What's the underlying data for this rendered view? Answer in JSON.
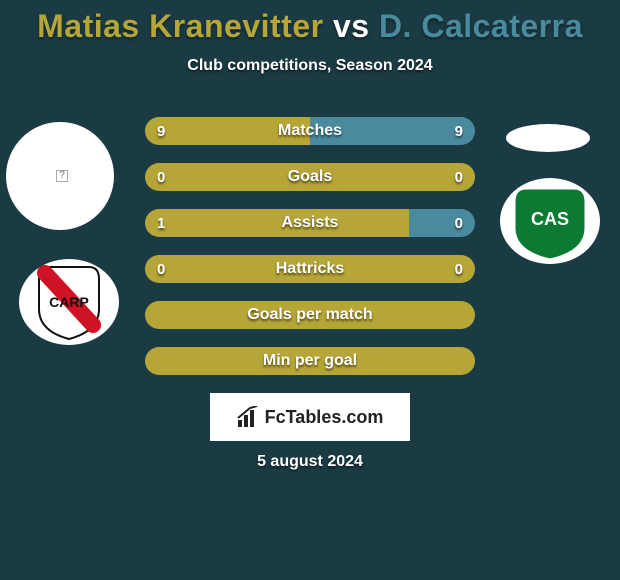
{
  "background_color": "#1b3b44",
  "title": {
    "player1": "Matias Kranevitter",
    "player1_color": "#b6a537",
    "vs": " vs ",
    "vs_color": "#ffffff",
    "player2": "D. Calcaterra",
    "player2_color": "#4a8a9e",
    "fontsize": 32,
    "fontweight": 900
  },
  "subtitle": {
    "text": "Club competitions, Season 2024",
    "fontsize": 16,
    "color": "#ffffff"
  },
  "bars": {
    "height": 28,
    "border_radius": 14,
    "gap": 18,
    "left_color": "#b6a537",
    "right_color": "#4a8a9e",
    "empty_color": "#b6a537",
    "label_color": "#ffffff",
    "value_color": "#ffffff",
    "label_fontsize": 16,
    "value_fontsize": 15
  },
  "stats": [
    {
      "label": "Matches",
      "left_val": "9",
      "right_val": "9",
      "left_pct": 50,
      "right_pct": 50
    },
    {
      "label": "Goals",
      "left_val": "0",
      "right_val": "0",
      "left_pct": 100,
      "right_pct": 0,
      "empty": true
    },
    {
      "label": "Assists",
      "left_val": "1",
      "right_val": "0",
      "left_pct": 80,
      "right_pct": 20
    },
    {
      "label": "Hattricks",
      "left_val": "0",
      "right_val": "0",
      "left_pct": 100,
      "right_pct": 0,
      "empty": true
    },
    {
      "label": "Goals per match",
      "left_val": "",
      "right_val": "",
      "left_pct": 100,
      "right_pct": 0,
      "empty": true
    },
    {
      "label": "Min per goal",
      "left_val": "",
      "right_val": "",
      "left_pct": 100,
      "right_pct": 0,
      "empty": true
    }
  ],
  "player_photo_left": {
    "bg": "#ffffff"
  },
  "player_photo_right": {
    "bg": "#ffffff"
  },
  "club_left": {
    "bg_color": "#ffffff",
    "stripe_color": "#d01324",
    "text": "CARP",
    "text_color": "#111111"
  },
  "club_right": {
    "bg_color": "#0b7a33",
    "outline_color": "#ffffff",
    "text": "CAS",
    "text_color": "#ffffff"
  },
  "footer_brand": {
    "bg": "#ffffff",
    "text": "FcTables.com",
    "color": "#222222",
    "fontsize": 18
  },
  "date": {
    "text": "5 august 2024",
    "color": "#ffffff",
    "fontsize": 16
  }
}
